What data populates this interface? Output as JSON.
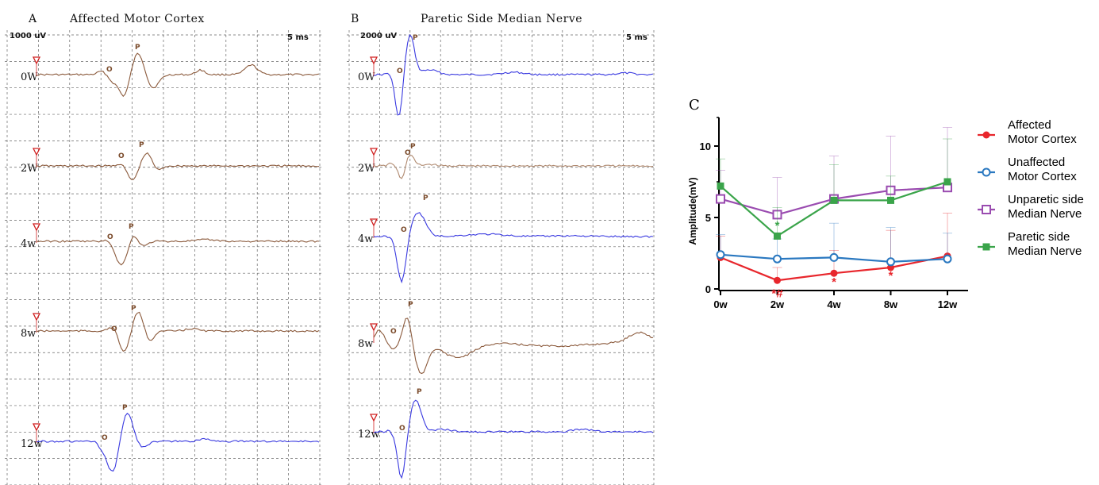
{
  "panel_a": {
    "letter": "A",
    "title": "Affected Motor Cortex",
    "scale_amplitude": "1000 uV",
    "scale_time": "5 ms",
    "onset_label": "O",
    "peak_label": "P",
    "rows": [
      {
        "label": "0W",
        "color": "#8b5a3c"
      },
      {
        "label": "2W",
        "color": "#8b5a3c"
      },
      {
        "label": "4w",
        "color": "#8b5a3c"
      },
      {
        "label": "8w",
        "color": "#8b5a3c"
      },
      {
        "label": "12w",
        "color": "#3a3ae0"
      }
    ]
  },
  "panel_b": {
    "letter": "B",
    "title": "Paretic Side Median Nerve",
    "scale_amplitude": "2000 uV",
    "scale_time": "5 ms",
    "onset_label": "O",
    "peak_label": "P",
    "rows": [
      {
        "label": "0W",
        "color": "#3a3ae0"
      },
      {
        "label": "2W",
        "color": "#b08a70"
      },
      {
        "label": "4w",
        "color": "#3a3ae0"
      },
      {
        "label": "8w",
        "color": "#8b5a3c"
      },
      {
        "label": "12w",
        "color": "#3a3ae0"
      }
    ]
  },
  "panel_c": {
    "letter": "C"
  },
  "chart_data": {
    "type": "line",
    "title": "",
    "xlabel": "",
    "ylabel": "Amplitude(mV)",
    "categories": [
      "0w",
      "2w",
      "4w",
      "8w",
      "12w"
    ],
    "ylim": [
      0,
      12
    ],
    "yticks": [
      0,
      5,
      10
    ],
    "grid": false,
    "legend_position": "right",
    "series": [
      {
        "name": "Affected Motor Cortex",
        "color": "#e8262c",
        "marker": "circle-filled",
        "values": [
          2.2,
          0.6,
          1.1,
          1.5,
          2.3
        ],
        "error": [
          1.5,
          0.9,
          1.6,
          2.6,
          3.0
        ]
      },
      {
        "name": "Unaffected Motor Cortex",
        "color": "#2a78c0",
        "marker": "circle-open",
        "values": [
          2.4,
          2.1,
          2.2,
          1.9,
          2.1
        ],
        "error": [
          1.4,
          1.4,
          2.4,
          2.4,
          1.8
        ]
      },
      {
        "name": "Unparetic side Median Nerve",
        "color": "#9a4bb0",
        "marker": "square-open",
        "values": [
          6.3,
          5.2,
          6.3,
          6.9,
          7.1
        ],
        "error": [
          2.0,
          2.6,
          3.0,
          3.8,
          4.2
        ]
      },
      {
        "name": "Paretic side Median Nerve",
        "color": "#3aa44a",
        "marker": "square-filled",
        "values": [
          7.2,
          3.7,
          6.2,
          6.2,
          7.5
        ],
        "error": [
          1.9,
          2.0,
          2.5,
          1.7,
          3.0
        ]
      }
    ],
    "legend_lines": [
      [
        "Affected",
        "Motor Cortex"
      ],
      [
        "Unaffected",
        "Motor Cortex"
      ],
      [
        "Unparetic side",
        "Median Nerve"
      ],
      [
        "Paretic side",
        "Median Nerve"
      ]
    ],
    "annotations": [
      {
        "text": "*#",
        "x": "2w",
        "y": -0.25,
        "color": "#e8262c"
      },
      {
        "text": "*",
        "x": "4w",
        "y": 0.55,
        "color": "#e8262c"
      },
      {
        "text": "*",
        "x": "8w",
        "y": 1.0,
        "color": "#e8262c"
      },
      {
        "text": "*",
        "x": "2w",
        "y": 4.5,
        "color": "#3aa44a"
      }
    ]
  }
}
